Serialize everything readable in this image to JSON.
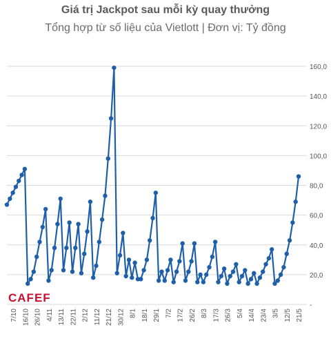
{
  "chart_data": {
    "type": "line",
    "title": "Giá trị Jackpot sau mỗi kỳ quay thưởng",
    "subtitle": "Tổng hợp từ số liệu của Vietlott | Đơn vị: Tỷ đồng",
    "ylim": [
      0,
      160
    ],
    "y_ticks": [
      "-",
      "20,0",
      "40,0",
      "60,0",
      "80,0",
      "100,0",
      "120,0",
      "140,0",
      "160,0"
    ],
    "x_tick_labels": [
      "7/10",
      "16/10",
      "26/10",
      "4/11",
      "13/11",
      "22/11",
      "2/12",
      "11/12",
      "21/12",
      "30/12",
      "8/1",
      "18/1",
      "29/1",
      "7/2",
      "17/2",
      "26/2",
      "8/3",
      "17/3",
      "26/3",
      "5/4",
      "14/4",
      "23/4",
      "3/5",
      "12/5",
      "21/5"
    ],
    "values": [
      67,
      71,
      75,
      79,
      83,
      87,
      91,
      14,
      17,
      22,
      32,
      42,
      52,
      64,
      16,
      23,
      38,
      54,
      71,
      23,
      38,
      55,
      22,
      38,
      54,
      21,
      34,
      49,
      69,
      18,
      26,
      42,
      57,
      73,
      98,
      125,
      159,
      21,
      33,
      48,
      19,
      30,
      18,
      28,
      17,
      17,
      23,
      30,
      43,
      58,
      75,
      16,
      22,
      16,
      23,
      30,
      15,
      22,
      29,
      41,
      16,
      22,
      29,
      41,
      15,
      20,
      15,
      20,
      25,
      32,
      42,
      15,
      19,
      24,
      14,
      19,
      22,
      27,
      15,
      19,
      23,
      14,
      17,
      21,
      14,
      18,
      22,
      27,
      31,
      37,
      14,
      16,
      20,
      25,
      34,
      43,
      55,
      69,
      86
    ],
    "colors": {
      "line": "#1f5fa8",
      "point": "#1f5fa8",
      "grid": "#d9d9d9"
    },
    "grid": true
  },
  "brand": {
    "logo_text": "CAFEF",
    "color": "#c8102e"
  }
}
